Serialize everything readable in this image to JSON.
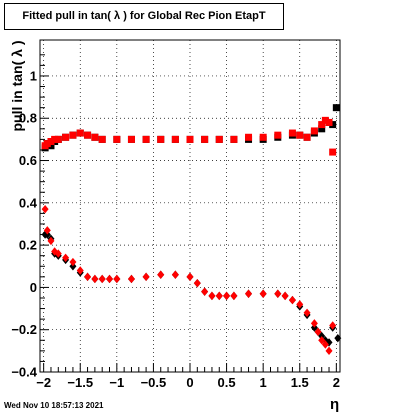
{
  "chart_data": {
    "type": "scatter",
    "title": "Fitted pull in tan( λ ) for Global Rec Pion EtapT",
    "xlabel": "η",
    "ylabel": "pull in tan( λ )",
    "xlim": [
      -2.05,
      2.05
    ],
    "ylim": [
      -0.4,
      1.17
    ],
    "grid": true,
    "xticks": [
      -2,
      -1.5,
      -1,
      -0.5,
      0,
      0.5,
      1,
      1.5,
      2
    ],
    "xtick_labels": [
      "−2",
      "−1.5",
      "−1",
      "−0.5",
      "0",
      "0.5",
      "1",
      "1.5",
      "2"
    ],
    "yticks": [
      -0.4,
      -0.2,
      0,
      0.2,
      0.4,
      0.6,
      0.8,
      1
    ],
    "ytick_labels": [
      "−0.4",
      "−0.2",
      "0",
      "0.2",
      "0.4",
      "0.6",
      "0.8",
      "1"
    ],
    "series": [
      {
        "name": "",
        "color": "#000000",
        "marker": "square",
        "x": [
          -1.98,
          -1.95,
          -1.9,
          -1.85,
          -1.8,
          -1.7,
          -1.6,
          -1.5,
          -1.4,
          -1.3,
          -1.2,
          -1.0,
          -0.8,
          -0.6,
          -0.4,
          -0.2,
          0.0,
          0.2,
          0.4,
          0.6,
          0.8,
          1.0,
          1.2,
          1.4,
          1.5,
          1.6,
          1.7,
          1.8,
          1.9,
          1.95,
          2.0
        ],
        "y": [
          0.66,
          0.68,
          0.67,
          0.69,
          0.7,
          0.71,
          0.72,
          0.73,
          0.72,
          0.71,
          0.7,
          0.7,
          0.7,
          0.7,
          0.7,
          0.7,
          0.7,
          0.7,
          0.7,
          0.7,
          0.7,
          0.7,
          0.71,
          0.72,
          0.72,
          0.71,
          0.73,
          0.75,
          0.78,
          0.77,
          0.85
        ]
      },
      {
        "name": "",
        "color": "#ff0000",
        "marker": "square",
        "x": [
          -1.98,
          -1.95,
          -1.9,
          -1.85,
          -1.8,
          -1.7,
          -1.6,
          -1.5,
          -1.4,
          -1.3,
          -1.2,
          -1.0,
          -0.8,
          -0.6,
          -0.4,
          -0.2,
          0.0,
          0.2,
          0.4,
          0.6,
          0.8,
          1.0,
          1.2,
          1.4,
          1.5,
          1.6,
          1.7,
          1.8,
          1.85,
          1.9,
          1.95
        ],
        "y": [
          0.67,
          0.68,
          0.69,
          0.7,
          0.7,
          0.71,
          0.72,
          0.73,
          0.72,
          0.71,
          0.7,
          0.7,
          0.7,
          0.7,
          0.7,
          0.7,
          0.7,
          0.7,
          0.7,
          0.7,
          0.71,
          0.71,
          0.72,
          0.73,
          0.72,
          0.71,
          0.74,
          0.77,
          0.79,
          0.78,
          0.64
        ]
      },
      {
        "name": "",
        "color": "#000000",
        "marker": "circle",
        "x": [
          -1.98,
          -1.95,
          -1.9,
          -1.85,
          -1.8,
          -1.7,
          -1.6,
          -1.5,
          -1.4,
          -1.3,
          -1.2,
          -1.1,
          -1.0,
          -0.8,
          -0.6,
          -0.4,
          -0.2,
          0.0,
          0.1,
          0.2,
          0.3,
          0.4,
          0.5,
          0.6,
          0.8,
          1.0,
          1.2,
          1.3,
          1.4,
          1.5,
          1.6,
          1.7,
          1.75,
          1.8,
          1.85,
          1.9,
          1.95,
          2.02
        ],
        "y": [
          0.25,
          0.25,
          0.23,
          0.16,
          0.15,
          0.13,
          0.1,
          0.07,
          0.05,
          0.04,
          0.04,
          0.04,
          0.04,
          0.04,
          0.05,
          0.06,
          0.06,
          0.05,
          0.02,
          -0.02,
          -0.04,
          -0.04,
          -0.04,
          -0.04,
          -0.03,
          -0.03,
          -0.03,
          -0.04,
          -0.06,
          -0.09,
          -0.13,
          -0.19,
          -0.21,
          -0.23,
          -0.25,
          -0.26,
          -0.19,
          -0.24
        ]
      },
      {
        "name": "",
        "color": "#ff0000",
        "marker": "circle",
        "x": [
          -1.98,
          -1.95,
          -1.9,
          -1.85,
          -1.8,
          -1.7,
          -1.6,
          -1.5,
          -1.4,
          -1.3,
          -1.2,
          -1.1,
          -1.0,
          -0.8,
          -0.6,
          -0.4,
          -0.2,
          0.0,
          0.1,
          0.2,
          0.3,
          0.4,
          0.5,
          0.6,
          0.8,
          1.0,
          1.2,
          1.3,
          1.4,
          1.5,
          1.6,
          1.7,
          1.75,
          1.8,
          1.85,
          1.9,
          1.95
        ],
        "y": [
          0.37,
          0.27,
          0.22,
          0.17,
          0.16,
          0.14,
          0.12,
          0.08,
          0.05,
          0.04,
          0.04,
          0.04,
          0.04,
          0.04,
          0.05,
          0.06,
          0.06,
          0.05,
          0.02,
          -0.02,
          -0.04,
          -0.04,
          -0.04,
          -0.04,
          -0.03,
          -0.03,
          -0.03,
          -0.04,
          -0.06,
          -0.08,
          -0.12,
          -0.17,
          -0.21,
          -0.25,
          -0.27,
          -0.3,
          -0.18
        ]
      }
    ]
  },
  "footer": {
    "timestamp": "Wed Nov 10 18:57:13 2021"
  }
}
